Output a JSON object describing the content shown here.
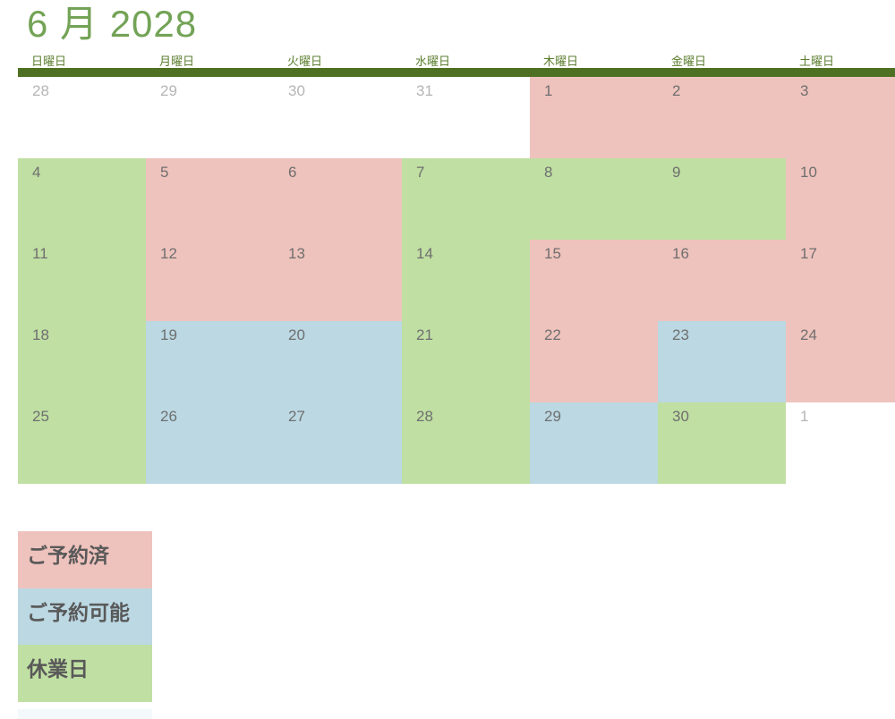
{
  "title": "6 月 2028",
  "colors": {
    "title_text": "#73a356",
    "weekday_text": "#5c7e2f",
    "header_bar": "#4e7023",
    "reserved": "#efc3bd",
    "available": "#bbd8e3",
    "closed": "#c0dfa3",
    "none": "#ffffff",
    "day_text": "#6f6f6f",
    "day_text_outside": "#b5b5b5",
    "legend_text": "#595959"
  },
  "weekdays": [
    "日曜日",
    "月曜日",
    "火曜日",
    "水曜日",
    "木曜日",
    "金曜日",
    "土曜日"
  ],
  "weeks": [
    [
      {
        "day": "28",
        "status": "none",
        "outside": true
      },
      {
        "day": "29",
        "status": "none",
        "outside": true
      },
      {
        "day": "30",
        "status": "none",
        "outside": true
      },
      {
        "day": "31",
        "status": "none",
        "outside": true
      },
      {
        "day": "1",
        "status": "reserved",
        "outside": false
      },
      {
        "day": "2",
        "status": "reserved",
        "outside": false
      },
      {
        "day": "3",
        "status": "reserved",
        "outside": false
      }
    ],
    [
      {
        "day": "4",
        "status": "closed",
        "outside": false
      },
      {
        "day": "5",
        "status": "reserved",
        "outside": false
      },
      {
        "day": "6",
        "status": "reserved",
        "outside": false
      },
      {
        "day": "7",
        "status": "closed",
        "outside": false
      },
      {
        "day": "8",
        "status": "closed",
        "outside": false
      },
      {
        "day": "9",
        "status": "closed",
        "outside": false
      },
      {
        "day": "10",
        "status": "reserved",
        "outside": false
      }
    ],
    [
      {
        "day": "11",
        "status": "closed",
        "outside": false
      },
      {
        "day": "12",
        "status": "reserved",
        "outside": false
      },
      {
        "day": "13",
        "status": "reserved",
        "outside": false
      },
      {
        "day": "14",
        "status": "closed",
        "outside": false
      },
      {
        "day": "15",
        "status": "reserved",
        "outside": false
      },
      {
        "day": "16",
        "status": "reserved",
        "outside": false
      },
      {
        "day": "17",
        "status": "reserved",
        "outside": false
      }
    ],
    [
      {
        "day": "18",
        "status": "closed",
        "outside": false
      },
      {
        "day": "19",
        "status": "available",
        "outside": false
      },
      {
        "day": "20",
        "status": "available",
        "outside": false
      },
      {
        "day": "21",
        "status": "closed",
        "outside": false
      },
      {
        "day": "22",
        "status": "reserved",
        "outside": false
      },
      {
        "day": "23",
        "status": "available",
        "outside": false
      },
      {
        "day": "24",
        "status": "reserved",
        "outside": false
      }
    ],
    [
      {
        "day": "25",
        "status": "closed",
        "outside": false
      },
      {
        "day": "26",
        "status": "available",
        "outside": false
      },
      {
        "day": "27",
        "status": "available",
        "outside": false
      },
      {
        "day": "28",
        "status": "closed",
        "outside": false
      },
      {
        "day": "29",
        "status": "available",
        "outside": false
      },
      {
        "day": "30",
        "status": "closed",
        "outside": false
      },
      {
        "day": "1",
        "status": "none",
        "outside": true
      }
    ]
  ],
  "legend": [
    {
      "label": "ご予約済",
      "status": "reserved"
    },
    {
      "label": "ご予約可能",
      "status": "available"
    },
    {
      "label": "休業日",
      "status": "closed"
    }
  ]
}
